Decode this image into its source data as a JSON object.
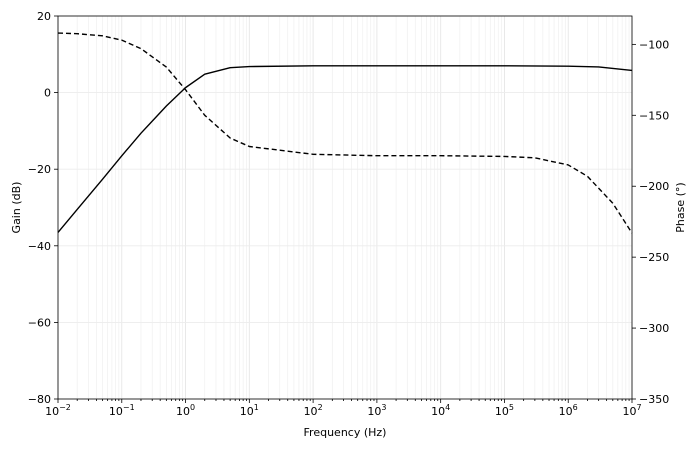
{
  "chart_data": {
    "type": "line",
    "xlabel": "Frequency (Hz)",
    "ylabel": "Gain (dB)",
    "y2label": "Phase (°)",
    "xscale": "log",
    "xlim": [
      0.01,
      10000000
    ],
    "ylim": [
      -80,
      20
    ],
    "y2lim": [
      -350,
      -80
    ],
    "grid": true,
    "x_ticks": [
      {
        "base": "10",
        "exp": "−2"
      },
      {
        "base": "10",
        "exp": "−1"
      },
      {
        "base": "10",
        "exp": "0"
      },
      {
        "base": "10",
        "exp": "1"
      },
      {
        "base": "10",
        "exp": "2"
      },
      {
        "base": "10",
        "exp": "3"
      },
      {
        "base": "10",
        "exp": "4"
      },
      {
        "base": "10",
        "exp": "5"
      },
      {
        "base": "10",
        "exp": "6"
      },
      {
        "base": "10",
        "exp": "7"
      }
    ],
    "y_ticks": [
      "20",
      "0",
      "−20",
      "−40",
      "−60",
      "−80"
    ],
    "y2_ticks": [
      "−100",
      "−150",
      "−200",
      "−250",
      "−300",
      "−350"
    ],
    "series": [
      {
        "axis": "left",
        "style": "solid",
        "color": "#000000",
        "x": [
          0.01,
          0.02,
          0.05,
          0.1,
          0.2,
          0.5,
          1,
          2,
          5,
          10,
          100,
          1000,
          10000,
          100000,
          1000000,
          3000000,
          10000000
        ],
        "y": [
          -36.5,
          -30.5,
          -22.6,
          -16.5,
          -10.6,
          -3.5,
          1.3,
          4.8,
          6.5,
          6.8,
          7.0,
          7.0,
          7.0,
          7.0,
          6.9,
          6.7,
          5.8
        ]
      },
      {
        "axis": "right",
        "style": "dashed",
        "color": "#000000",
        "x": [
          0.01,
          0.02,
          0.05,
          0.1,
          0.2,
          0.5,
          1,
          2,
          5,
          10,
          100,
          1000,
          10000,
          100000,
          300000,
          1000000,
          2000000,
          5000000,
          10000000
        ],
        "y": [
          -92,
          -92.5,
          -94,
          -97,
          -103,
          -116,
          -132,
          -150,
          -166,
          -172,
          -177.5,
          -178.5,
          -178.5,
          -179,
          -180,
          -185,
          -193,
          -212,
          -233
        ]
      }
    ]
  }
}
